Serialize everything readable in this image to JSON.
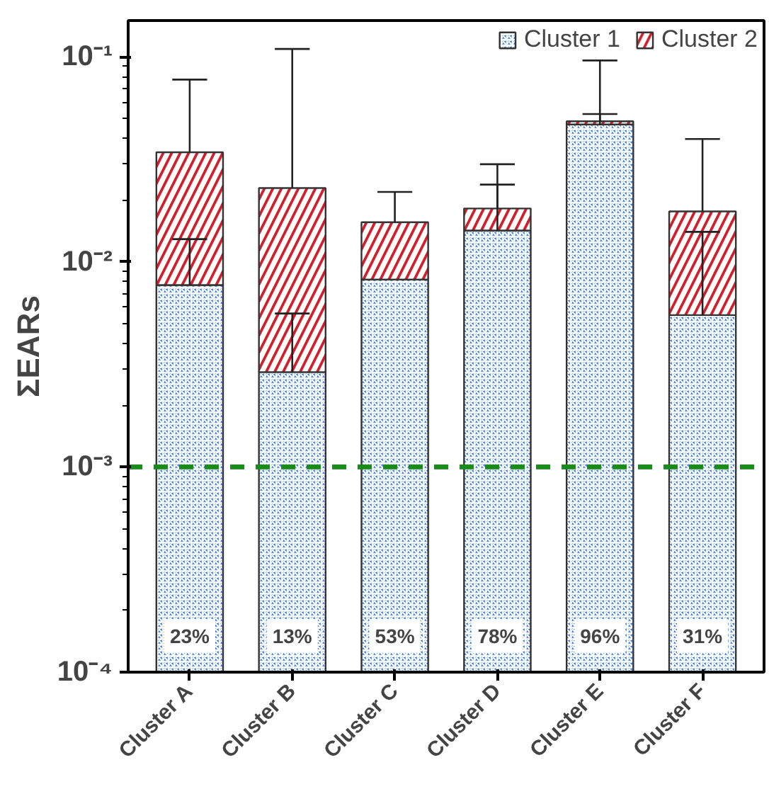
{
  "chart_data": {
    "type": "bar",
    "stacked": true,
    "log": "y",
    "ylabel": "ΣEARs",
    "categories": [
      "Cluster A",
      "Cluster B",
      "Cluster C",
      "Cluster D",
      "Cluster E",
      "Cluster F"
    ],
    "series": [
      {
        "name": "Cluster 1",
        "color": "#2f6fe0",
        "values": [
          0.0077,
          0.0029,
          0.0082,
          0.0142,
          0.0467,
          0.0055
        ],
        "errors": [
          [
            0.0077,
            0.0129
          ],
          [
            0.0029,
            0.0056
          ],
          null,
          [
            0.0142,
            0.0238
          ],
          [
            0.0467,
            0.0525
          ],
          [
            0.0055,
            0.014
          ]
        ]
      },
      {
        "name": "Cluster 2",
        "color": "#d0202e",
        "values": [
          0.0265,
          0.02,
          0.0074,
          0.004,
          0.0017,
          0.0121
        ],
        "errors": [
          [
            0.0342,
            0.0773
          ],
          [
            0.0229,
            0.109
          ],
          [
            0.0156,
            0.0219
          ],
          [
            0.0182,
            0.0299
          ],
          [
            0.0484,
            0.0958
          ],
          [
            0.0176,
            0.0397
          ]
        ]
      }
    ],
    "ylim": [
      0.0001,
      0.15
    ],
    "yticks": [
      {
        "value": 0.0001,
        "label": "10⁻⁴"
      },
      {
        "value": 0.001,
        "label": "10⁻³"
      },
      {
        "value": 0.01,
        "label": "10⁻²"
      },
      {
        "value": 0.1,
        "label": "10⁻¹"
      }
    ],
    "ref_lines": [
      {
        "axis": "y",
        "value": 0.001,
        "color": "#1a8a1a",
        "line_style": "dashed"
      }
    ],
    "annotations": [
      {
        "text": "23%",
        "x": "Cluster A",
        "y": 0.00015
      },
      {
        "text": "13%",
        "x": "Cluster B",
        "y": 0.00015
      },
      {
        "text": "53%",
        "x": "Cluster C",
        "y": 0.00015
      },
      {
        "text": "78%",
        "x": "Cluster D",
        "y": 0.00015
      },
      {
        "text": "96%",
        "x": "Cluster E",
        "y": 0.00015
      },
      {
        "text": "31%",
        "x": "Cluster F",
        "y": 0.00015
      }
    ],
    "legend": "top right",
    "grid": false
  }
}
